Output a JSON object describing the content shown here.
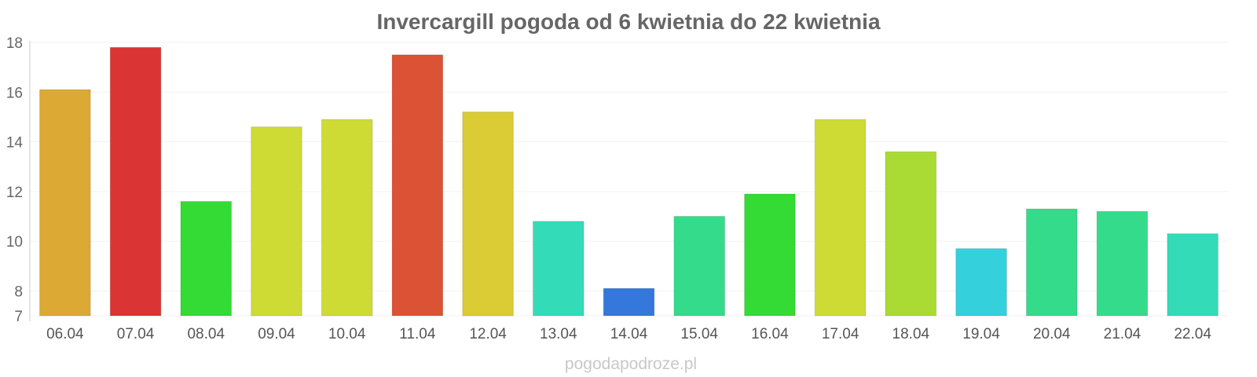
{
  "chart_data": {
    "type": "bar",
    "title": "Invercargill pogoda od 6 kwietnia do 22 kwietnia",
    "xlabel": "",
    "ylabel": "",
    "categories": [
      "06.04",
      "07.04",
      "08.04",
      "09.04",
      "10.04",
      "11.04",
      "12.04",
      "13.04",
      "14.04",
      "15.04",
      "16.04",
      "17.04",
      "18.04",
      "19.04",
      "20.04",
      "21.04",
      "22.04"
    ],
    "values": [
      16.1,
      17.8,
      11.6,
      14.6,
      14.9,
      17.5,
      15.2,
      10.8,
      8.1,
      11.0,
      11.9,
      14.9,
      13.6,
      9.7,
      11.3,
      11.2,
      10.3
    ],
    "colors": [
      "#dba934",
      "#db3434",
      "#34db34",
      "#cedb34",
      "#cedb34",
      "#db5234",
      "#dbcb34",
      "#34dbb9",
      "#3478db",
      "#34db8a",
      "#34db34",
      "#cedb34",
      "#a9db34",
      "#34d0db",
      "#34db8a",
      "#34db8a",
      "#34dbb9"
    ],
    "ylim": [
      7,
      18
    ],
    "yticks": [
      7,
      8,
      10,
      12,
      14,
      16,
      18
    ],
    "grid": true,
    "legend": "none"
  },
  "watermark": "pogodapodroze.pl"
}
